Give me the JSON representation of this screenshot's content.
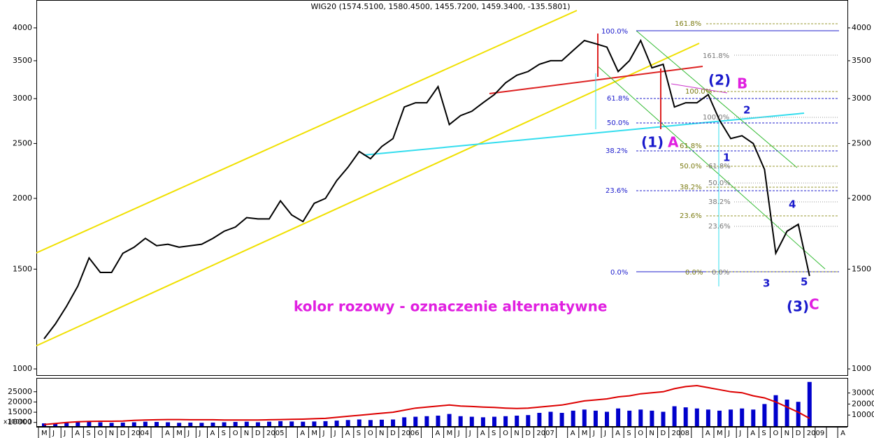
{
  "chart_data": [
    {
      "type": "line",
      "title": "WIG20 (1574.5100, 1580.4500, 1455.7200, 1459.3400, -135.5801)",
      "values": [
        1130,
        1200,
        1290,
        1400,
        1570,
        1480,
        1480,
        1600,
        1640,
        1700,
        1650,
        1660,
        1640,
        1650,
        1660,
        1700,
        1750,
        1780,
        1850,
        1840,
        1840,
        1980,
        1870,
        1820,
        1960,
        2000,
        2150,
        2270,
        2420,
        2350,
        2470,
        2550,
        2900,
        2950,
        2950,
        3150,
        2700,
        2800,
        2850,
        2950,
        3050,
        3200,
        3300,
        3350,
        3450,
        3500,
        3500,
        3650,
        3800,
        3750,
        3700,
        3350,
        3500,
        3800,
        3400,
        3450,
        2900,
        2950,
        2950,
        3050,
        2750,
        2550,
        2580,
        2500,
        2250,
        1600,
        1750,
        1800,
        1459,
        null,
        null,
        null
      ],
      "color": "#000000",
      "log_scale": true,
      "ylim": [
        975,
        4480
      ],
      "yticks": [
        1000,
        1500,
        2000,
        2500,
        3000,
        3500,
        4000
      ],
      "annotations": [
        "100.0%",
        "61.8%",
        "50.0%",
        "38.2%",
        "23.6%",
        "0.0%",
        "161.8%",
        "100.0%",
        "61.8%",
        "50.0%",
        "38.2%",
        "23.6%",
        "0.0%",
        "161.8%",
        "100.0%",
        "61.8%",
        "50.0%",
        "38.2%",
        "23.6%",
        "0.0%",
        "(1)",
        "A",
        "(2)",
        "B",
        "1",
        "2",
        "3",
        "4",
        "5",
        "(3)",
        "C",
        "kolor rozowy - oznaczenie alternatywne"
      ]
    },
    {
      "type": "bar",
      "categories": [
        "M",
        "J",
        "J",
        "A",
        "S",
        "O",
        "N",
        "D",
        "2004",
        null,
        null,
        "A",
        "M",
        "J",
        "J",
        "A",
        "S",
        "O",
        "N",
        "D",
        "2005",
        null,
        null,
        "A",
        "M",
        "J",
        "J",
        "A",
        "S",
        "O",
        "N",
        "D",
        "2006",
        null,
        null,
        "A",
        "M",
        "J",
        "J",
        "A",
        "S",
        "O",
        "N",
        "D",
        "2007",
        null,
        null,
        "A",
        "M",
        "J",
        "J",
        "A",
        "S",
        "O",
        "N",
        "D",
        "2008",
        null,
        null,
        "A",
        "M",
        "J",
        "J",
        "A",
        "S",
        "O",
        "N",
        "D",
        "2009",
        null,
        null,
        "A"
      ],
      "series": [
        {
          "color": "#0000cc",
          "values": [
            2500,
            2800,
            3000,
            3500,
            4000,
            3500,
            3000,
            3200,
            3500,
            4000,
            3800,
            3500,
            3000,
            3200,
            3000,
            3200,
            3500,
            3800,
            4000,
            3500,
            4000,
            4500,
            4200,
            4000,
            4200,
            4500,
            5000,
            5500,
            6000,
            5500,
            5800,
            6000,
            8000,
            8500,
            9000,
            9500,
            11000,
            9000,
            8500,
            8000,
            8500,
            9000,
            9500,
            10000,
            12000,
            13000,
            12000,
            14000,
            15000,
            14000,
            13000,
            16000,
            14000,
            15000,
            14000,
            13000,
            18000,
            17000,
            16000,
            15000,
            14000,
            15000,
            16000,
            15000,
            20000,
            28000,
            24000,
            22000,
            40000,
            null,
            null,
            null
          ]
        },
        {
          "color": "#dd0000",
          "axis": "y2",
          "values": [
            9000,
            9500,
            10000,
            10300,
            10500,
            10600,
            10600,
            10700,
            11000,
            11200,
            11300,
            11400,
            11400,
            11300,
            11300,
            11300,
            11200,
            11200,
            11200,
            11200,
            11300,
            11400,
            11500,
            11600,
            11800,
            12000,
            12500,
            13000,
            13500,
            14000,
            14500,
            15000,
            16000,
            17000,
            17500,
            18000,
            18500,
            18000,
            17800,
            17500,
            17300,
            17000,
            16800,
            17000,
            17500,
            18000,
            18500,
            19500,
            20500,
            21000,
            21500,
            22500,
            23000,
            24000,
            24500,
            25000,
            26500,
            27500,
            28000,
            27000,
            26000,
            25000,
            24500,
            23000,
            22000,
            20000,
            17500,
            15000,
            12000,
            null,
            null,
            null
          ]
        }
      ],
      "ylim": [
        0,
        43000
      ],
      "yticks": [
        10000,
        20000,
        30000
      ],
      "y2lim": [
        8200,
        31400
      ],
      "y2ticks": [
        10000,
        15000,
        20000,
        25000
      ],
      "y2label": "x100000"
    }
  ]
}
